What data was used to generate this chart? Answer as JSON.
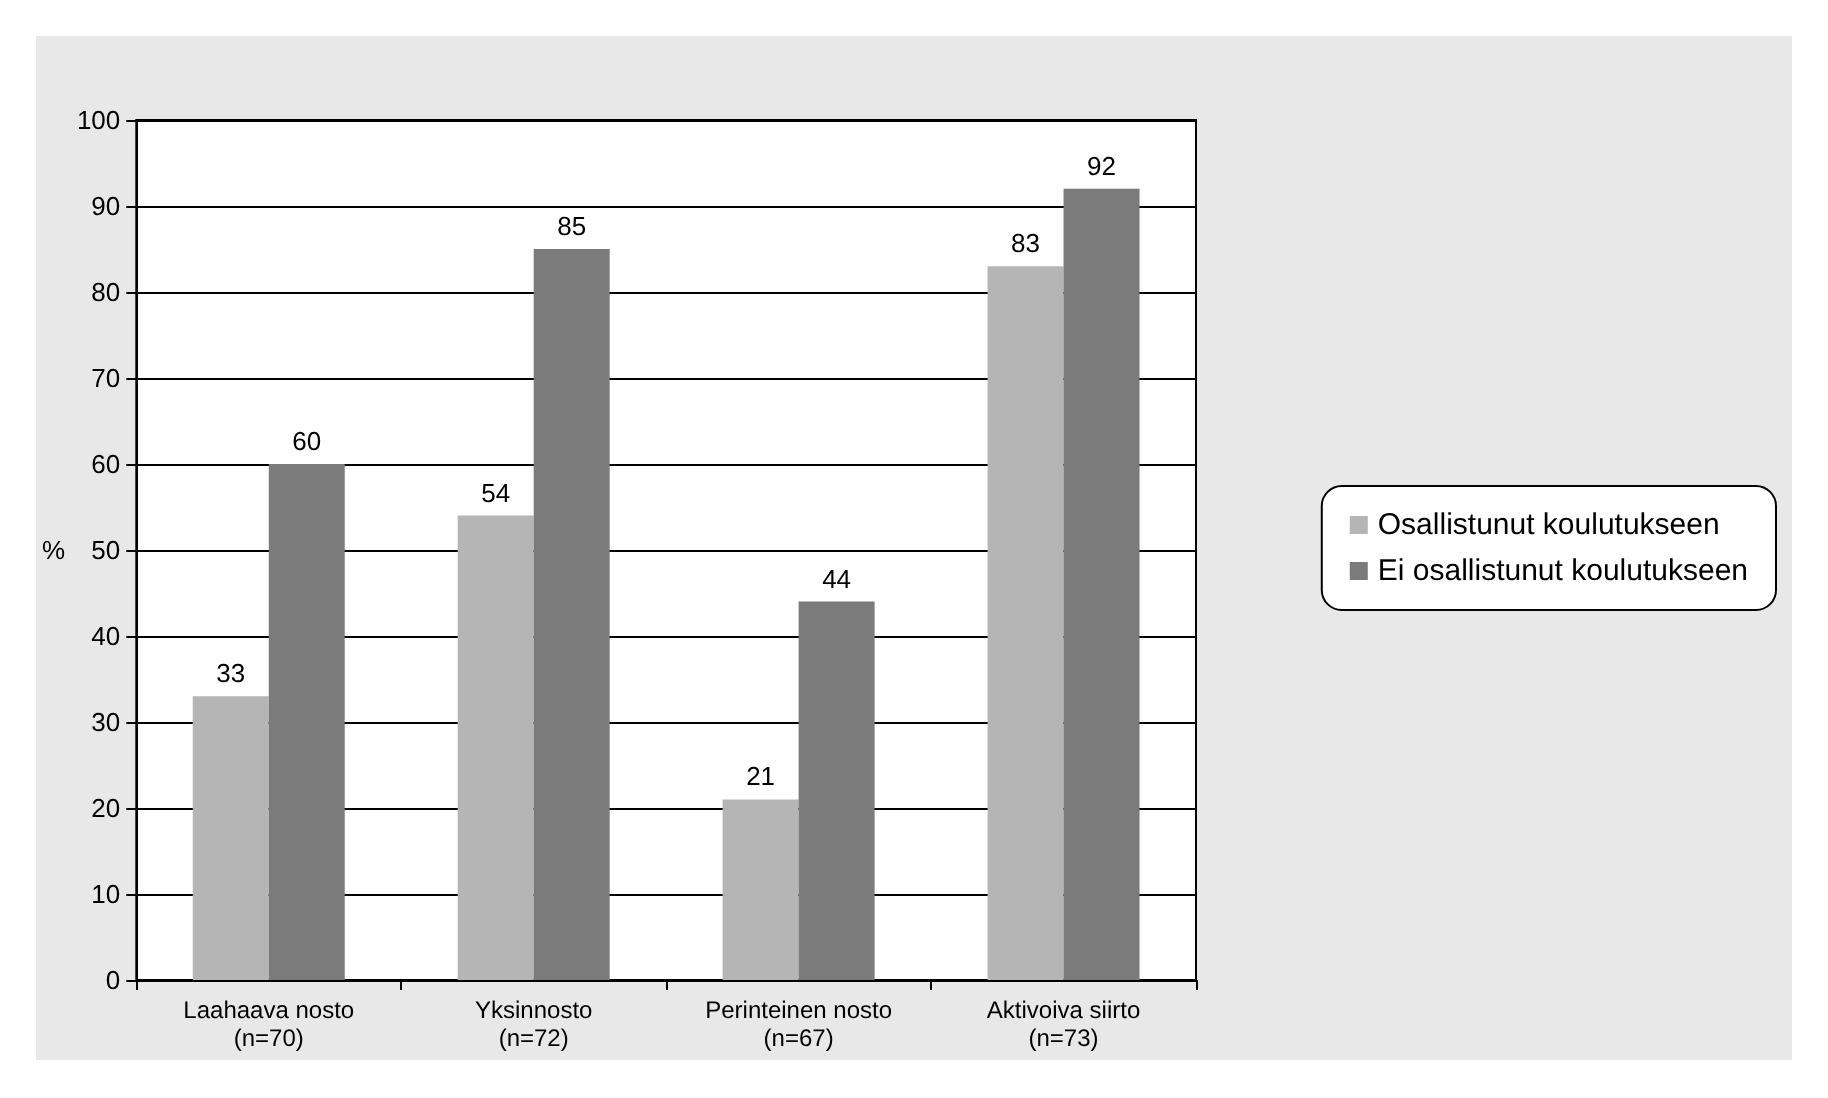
{
  "chart_data": {
    "type": "bar",
    "ylabel": "%",
    "categories": [
      "Laahaava nosto\n(n=70)",
      "Yksinnosto\n(n=72)",
      "Perinteinen nosto\n(n=67)",
      "Aktivoiva siirto\n(n=73)"
    ],
    "series": [
      {
        "name": "Osallistunut koulutukseen",
        "color": "#b5b5b5",
        "values": [
          33,
          54,
          21,
          83
        ]
      },
      {
        "name": "Ei osallistunut koulutukseen",
        "color": "#7b7b7b",
        "values": [
          60,
          85,
          44,
          92
        ]
      }
    ],
    "ylim": [
      0,
      100
    ],
    "yticks": [
      0,
      10,
      20,
      30,
      40,
      50,
      60,
      70,
      80,
      90,
      100
    ],
    "grid": "y",
    "legend": "right",
    "data_labels": true
  }
}
